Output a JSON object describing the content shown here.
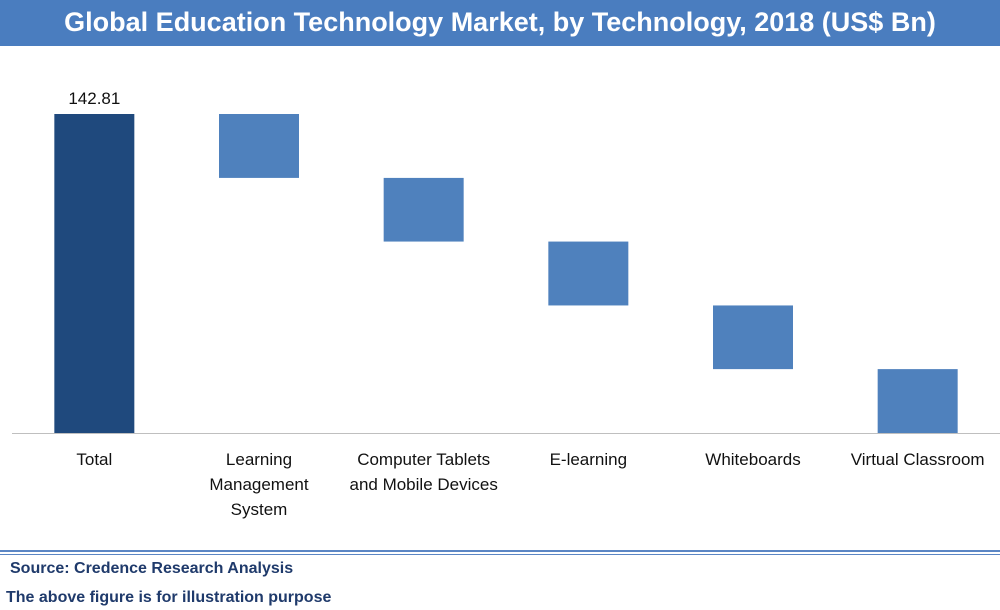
{
  "colors": {
    "title_background": "#4a7dbf",
    "total_bar": "#1f497d",
    "step_bar": "#4f81bd",
    "axis": "#bfbfbf",
    "footer_text": "#1f3a6b"
  },
  "footer": {
    "source": "Source: Credence Research Analysis",
    "note": "The above figure is for illustration purpose"
  },
  "chart_data": {
    "type": "bar",
    "subtype": "waterfall",
    "title": "Global Education Technology Market, by Technology, 2018 (US$ Bn)",
    "categories": [
      [
        "Total"
      ],
      [
        "Learning",
        "Management",
        "System"
      ],
      [
        "Computer Tablets",
        "and Mobile Devices"
      ],
      [
        "E-learning"
      ],
      [
        "Whiteboards"
      ],
      [
        "Virtual Classroom"
      ]
    ],
    "bars": [
      {
        "kind": "total",
        "start": 0,
        "end": 142.81
      },
      {
        "kind": "step",
        "start": 142.81,
        "end": 114.2
      },
      {
        "kind": "step",
        "start": 114.2,
        "end": 85.7
      },
      {
        "kind": "step",
        "start": 85.7,
        "end": 57.1
      },
      {
        "kind": "step",
        "start": 57.1,
        "end": 28.6
      },
      {
        "kind": "step",
        "start": 28.6,
        "end": 0
      }
    ],
    "data_labels": [
      "142.81",
      "",
      "",
      "",
      "",
      ""
    ],
    "ylim": [
      0,
      142.81
    ],
    "grid": false,
    "legend": "none",
    "xlabel": "",
    "ylabel": ""
  }
}
